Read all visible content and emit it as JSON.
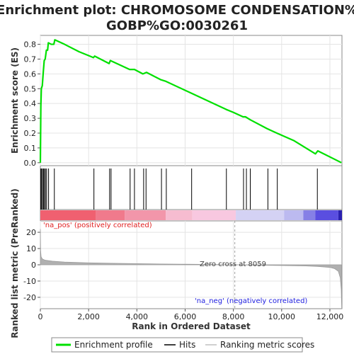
{
  "chart_data": {
    "type": "line",
    "title_line1": "Enrichment plot: CHROMOSOME CONDENSATION%",
    "title_line2": "GOBP%GO:0030261",
    "ylabel_top": "Enrichment score (ES)",
    "ylabel_bottom": "Ranked list metric (PreRanked)",
    "xlabel": "Rank in Ordered Dataset",
    "x_range": [
      0,
      12500
    ],
    "x_ticks": [
      0,
      2000,
      4000,
      6000,
      8000,
      10000,
      12000
    ],
    "x_tick_labels": [
      "0",
      "2,000",
      "4,000",
      "6,000",
      "8,000",
      "10,000",
      "12,000"
    ],
    "es_range": [
      -0.02,
      0.86
    ],
    "es_ticks": [
      0.0,
      0.1,
      0.2,
      0.3,
      0.4,
      0.5,
      0.6,
      0.7,
      0.8
    ],
    "es_tick_labels": [
      "0.0",
      "0.1",
      "0.2",
      "0.3",
      "0.4",
      "0.5",
      "0.6",
      "0.7",
      "0.8"
    ],
    "metric_range": [
      -27,
      27
    ],
    "metric_ticks": [
      20,
      10,
      0,
      -10,
      -20
    ],
    "metric_tick_labels": [
      "20",
      "10",
      "0",
      "-10",
      "-20"
    ],
    "enrichment_profile": [
      [
        0,
        0.0
      ],
      [
        20,
        0.38
      ],
      [
        40,
        0.5
      ],
      [
        80,
        0.52
      ],
      [
        120,
        0.61
      ],
      [
        160,
        0.69
      ],
      [
        200,
        0.7
      ],
      [
        250,
        0.76
      ],
      [
        300,
        0.76
      ],
      [
        330,
        0.81
      ],
      [
        450,
        0.8
      ],
      [
        560,
        0.8
      ],
      [
        600,
        0.83
      ],
      [
        1000,
        0.8
      ],
      [
        1600,
        0.75
      ],
      [
        2200,
        0.71
      ],
      [
        2250,
        0.72
      ],
      [
        2850,
        0.67
      ],
      [
        2900,
        0.69
      ],
      [
        3700,
        0.63
      ],
      [
        3900,
        0.63
      ],
      [
        4250,
        0.6
      ],
      [
        4400,
        0.61
      ],
      [
        5000,
        0.56
      ],
      [
        5200,
        0.55
      ],
      [
        6250,
        0.47
      ],
      [
        7700,
        0.36
      ],
      [
        8000,
        0.34
      ],
      [
        8400,
        0.31
      ],
      [
        8500,
        0.31
      ],
      [
        8700,
        0.29
      ],
      [
        9400,
        0.23
      ],
      [
        9800,
        0.2
      ],
      [
        10500,
        0.15
      ],
      [
        11400,
        0.06
      ],
      [
        11500,
        0.08
      ],
      [
        12480,
        0.0
      ]
    ],
    "hits": [
      20,
      50,
      90,
      130,
      170,
      210,
      260,
      340,
      580,
      2220,
      2870,
      2930,
      3720,
      3900,
      4280,
      4380,
      5020,
      5220,
      6270,
      7710,
      8420,
      8540,
      8700,
      9430,
      9820,
      11480
    ],
    "metric_curve": [
      [
        0,
        22
      ],
      [
        10,
        9
      ],
      [
        30,
        5
      ],
      [
        80,
        3.6
      ],
      [
        200,
        2.8
      ],
      [
        500,
        2.2
      ],
      [
        1000,
        1.7
      ],
      [
        2000,
        1.2
      ],
      [
        3000,
        0.9
      ],
      [
        4000,
        0.7
      ],
      [
        5000,
        0.5
      ],
      [
        6000,
        0.35
      ],
      [
        7000,
        0.2
      ],
      [
        8059,
        0
      ],
      [
        9000,
        -0.2
      ],
      [
        10000,
        -0.4
      ],
      [
        11000,
        -0.7
      ],
      [
        11500,
        -1.0
      ],
      [
        12000,
        -1.6
      ],
      [
        12200,
        -2.4
      ],
      [
        12350,
        -4.0
      ],
      [
        12430,
        -8.0
      ],
      [
        12470,
        -15.0
      ],
      [
        12490,
        -27.0
      ]
    ],
    "heat_segments": [
      {
        "x0": 0,
        "x1": 2300,
        "color": "#f06070"
      },
      {
        "x0": 2300,
        "x1": 3500,
        "color": "#f07a8c"
      },
      {
        "x0": 3500,
        "x1": 5200,
        "color": "#f296aa"
      },
      {
        "x0": 5200,
        "x1": 6300,
        "color": "#f6bcd0"
      },
      {
        "x0": 6300,
        "x1": 8100,
        "color": "#f8c8e0"
      },
      {
        "x0": 8100,
        "x1": 10100,
        "color": "#d4d2f4"
      },
      {
        "x0": 10100,
        "x1": 10900,
        "color": "#bcbaf0"
      },
      {
        "x0": 10900,
        "x1": 11400,
        "color": "#8680e6"
      },
      {
        "x0": 11400,
        "x1": 12350,
        "color": "#5a4ee0"
      },
      {
        "x0": 12350,
        "x1": 12500,
        "color": "#2a20b0"
      }
    ],
    "zero_cross_rank": 8059,
    "zero_cross_label": "Zero cross at 8059",
    "pos_label": "'na_pos' (positively correlated)",
    "neg_label": "'na_neg' (negatively correlated)",
    "legend": [
      "Enrichment profile",
      "Hits",
      "Ranking metric scores"
    ],
    "colors": {
      "profile": "#00e000",
      "hits": "#000000",
      "metric": "#b0b0b0",
      "pos_label": "#e02020",
      "neg_label": "#2020e0",
      "zero_line": "#a0a0a0",
      "grid": "#e4e4e4"
    }
  }
}
